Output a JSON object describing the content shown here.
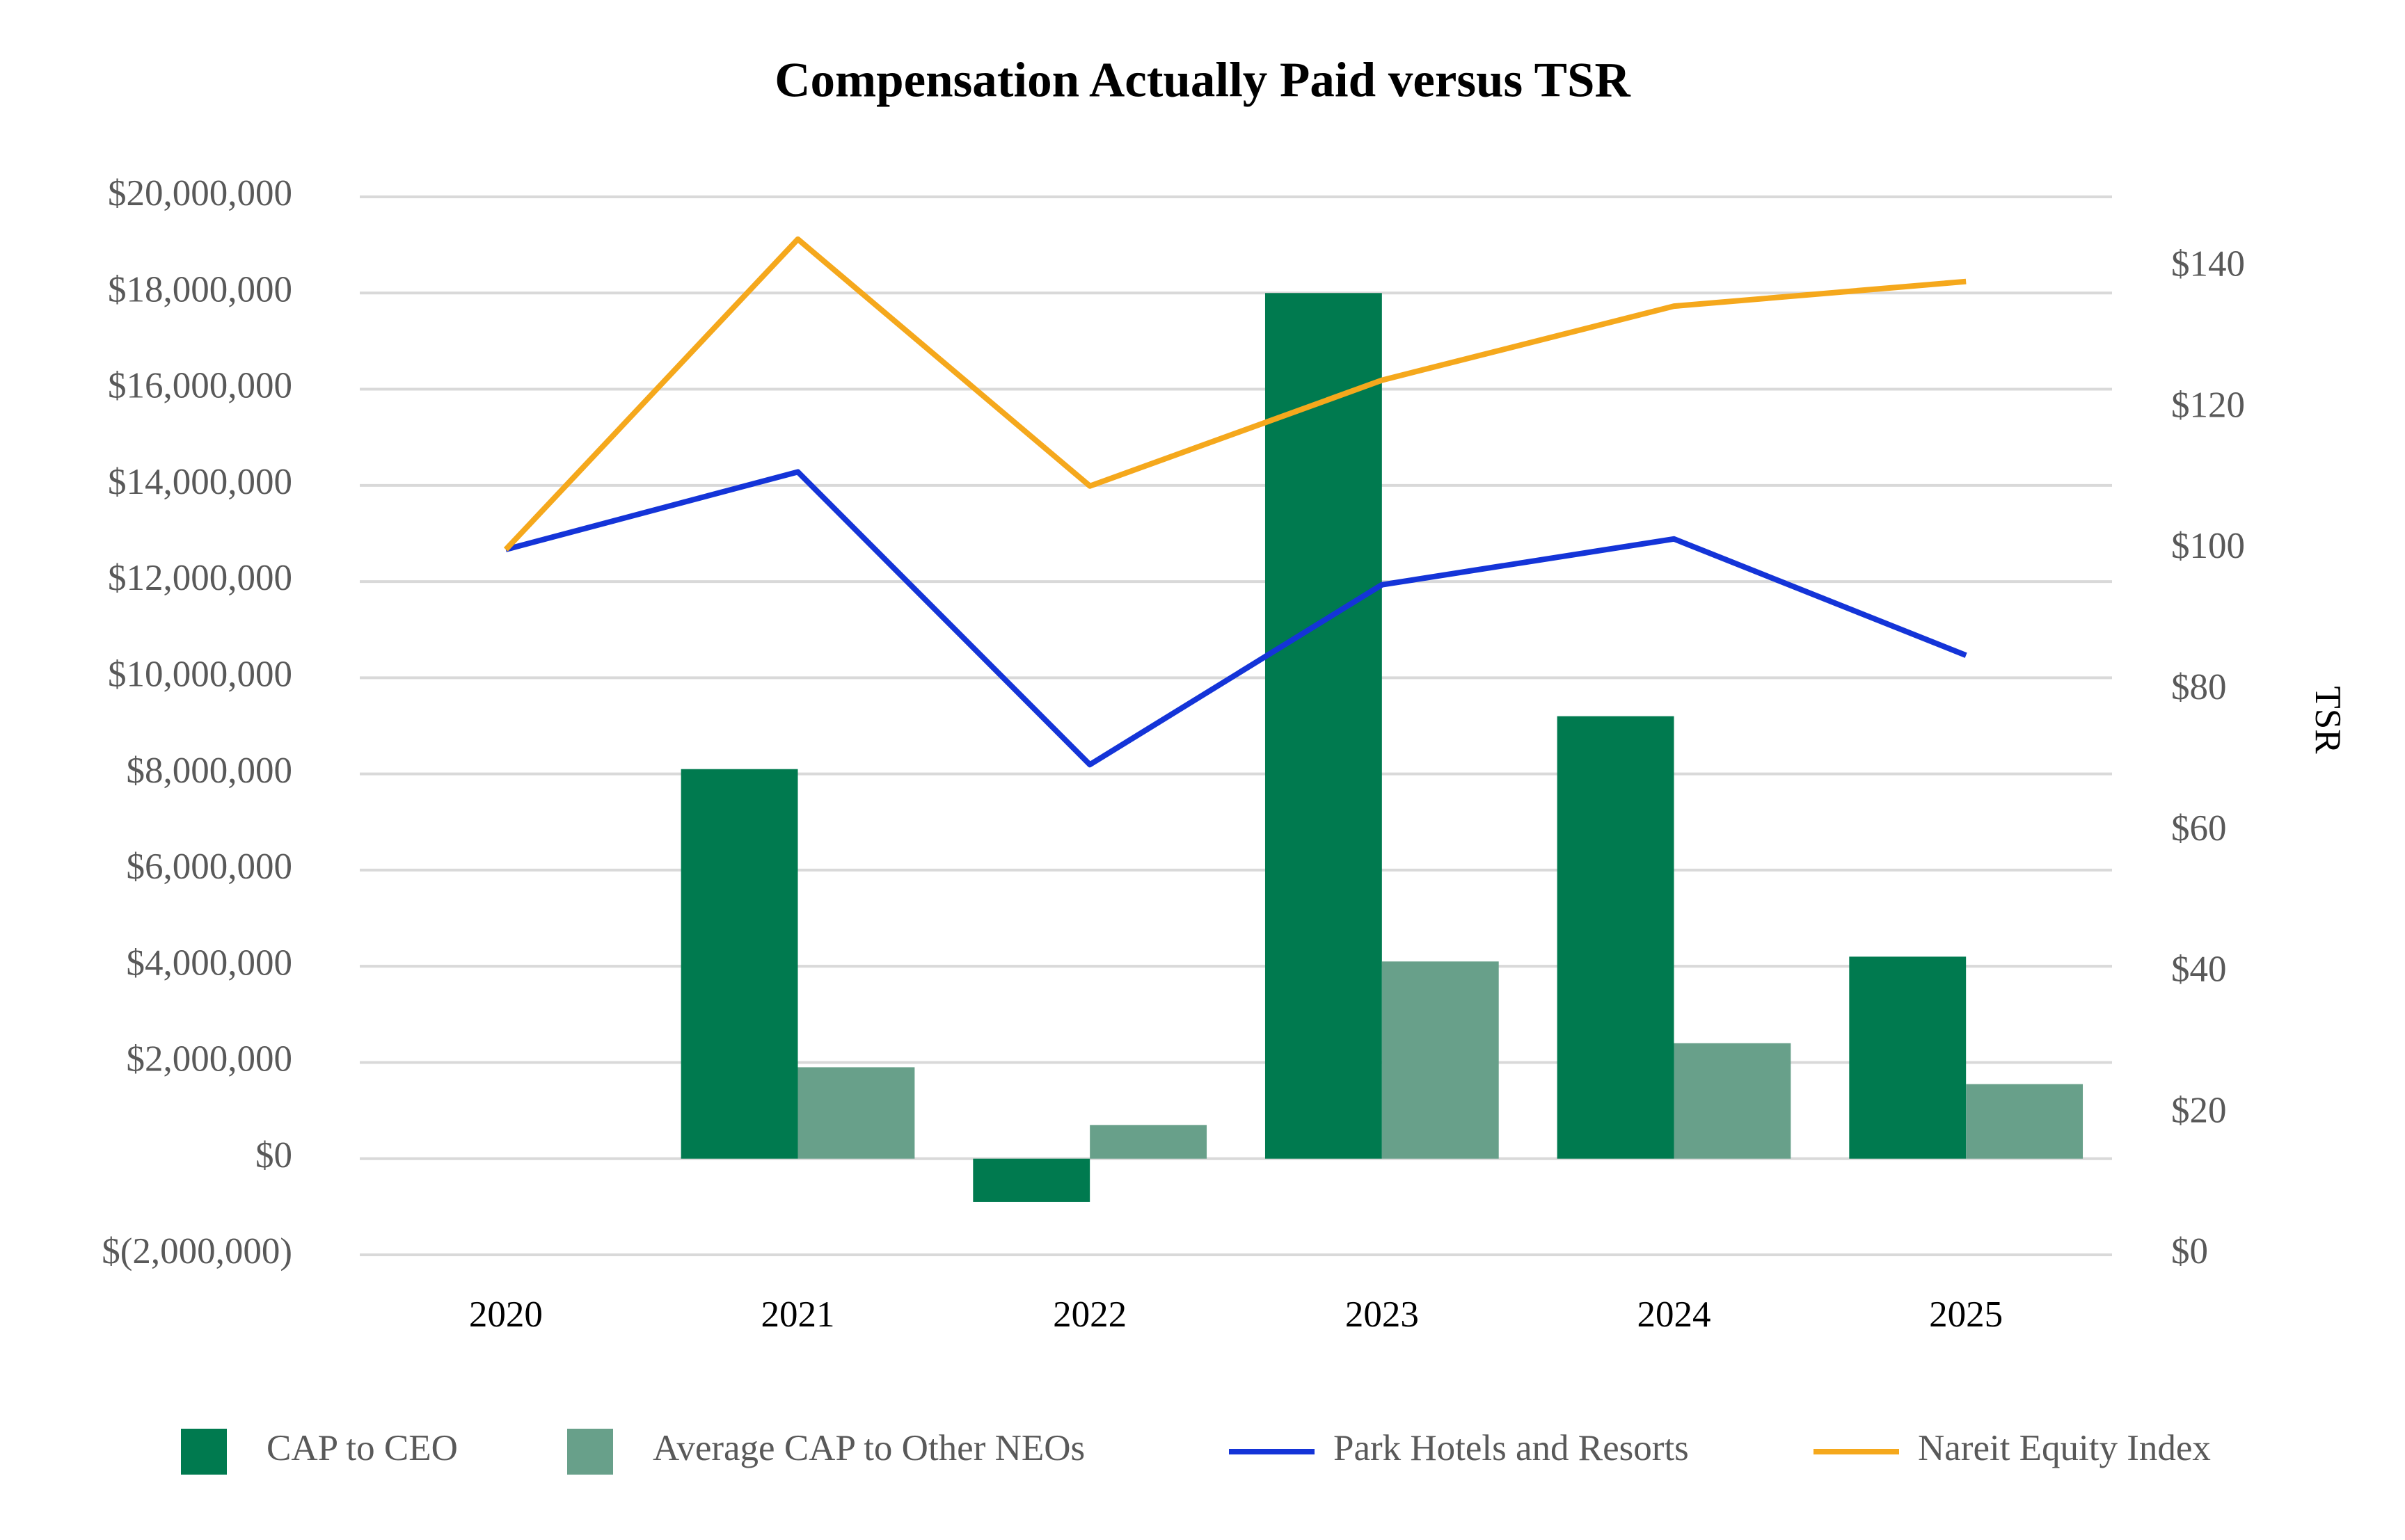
{
  "chart_data": {
    "type": "bar_line",
    "title": "Compensation Actually Paid versus TSR",
    "y2label": "TSR",
    "categories": [
      "2020",
      "2021",
      "2022",
      "2023",
      "2024",
      "2025"
    ],
    "series": [
      {
        "name": "CAP to CEO",
        "type": "bar",
        "color": "#007a4f",
        "values": [
          null,
          8100000,
          -900000,
          18000000,
          9200000,
          4200000
        ]
      },
      {
        "name": "Average CAP to Other NEOs",
        "type": "bar",
        "color": "#68a08a",
        "values": [
          null,
          1900000,
          700000,
          4100000,
          2400000,
          1550000
        ]
      },
      {
        "name": "Park Hotels and Resorts",
        "type": "line",
        "axis": "y2",
        "color": "#1434d8",
        "values": [
          100,
          111,
          69.5,
          95,
          101.5,
          85
        ]
      },
      {
        "name": "Nareit Equity Index",
        "type": "line",
        "axis": "y2",
        "color": "#f5a81c",
        "values": [
          100,
          144,
          109,
          124,
          134.5,
          138
        ]
      }
    ],
    "ylim": [
      -2000000,
      20000000
    ],
    "yticks": [
      {
        "value": -2000000,
        "label": "$(2,000,000)"
      },
      {
        "value": 0,
        "label": "$0"
      },
      {
        "value": 2000000,
        "label": "$2,000,000"
      },
      {
        "value": 4000000,
        "label": "$4,000,000"
      },
      {
        "value": 6000000,
        "label": "$6,000,000"
      },
      {
        "value": 8000000,
        "label": "$8,000,000"
      },
      {
        "value": 10000000,
        "label": "$10,000,000"
      },
      {
        "value": 12000000,
        "label": "$12,000,000"
      },
      {
        "value": 14000000,
        "label": "$14,000,000"
      },
      {
        "value": 16000000,
        "label": "$16,000,000"
      },
      {
        "value": 18000000,
        "label": "$18,000,000"
      },
      {
        "value": 20000000,
        "label": "$20,000,000"
      }
    ],
    "y2lim": [
      0,
      150
    ],
    "y2ticks": [
      {
        "value": 0,
        "label": "$0"
      },
      {
        "value": 20,
        "label": "$20"
      },
      {
        "value": 40,
        "label": "$40"
      },
      {
        "value": 60,
        "label": "$60"
      },
      {
        "value": 80,
        "label": "$80"
      },
      {
        "value": 100,
        "label": "$100"
      },
      {
        "value": 120,
        "label": "$120"
      },
      {
        "value": 140,
        "label": "$140"
      }
    ],
    "grid": true,
    "legend": "bottom"
  }
}
